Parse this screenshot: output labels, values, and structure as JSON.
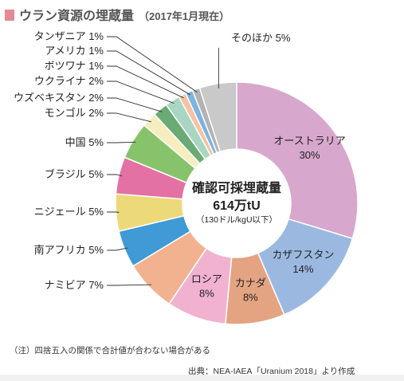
{
  "header": {
    "title": "ウラン資源の埋蔵量",
    "subtitle": "（2017年1月現在）",
    "accent_color": "#e48a96"
  },
  "chart_data": {
    "type": "pie",
    "style": "donut",
    "center_label": {
      "line1": "確認可採埋蔵量",
      "line2": "614万tU",
      "line3": "（130ドル/kgU以下）"
    },
    "start": "12 o'clock, clockwise",
    "slices": [
      {
        "label": "オーストラリア",
        "value": 30,
        "value_text": "30%",
        "color": "#d7a7cd"
      },
      {
        "label": "カザフスタン",
        "value": 14,
        "value_text": "14%",
        "color": "#9bb9e0"
      },
      {
        "label": "カナダ",
        "value": 8,
        "value_text": "8%",
        "color": "#e4a482"
      },
      {
        "label": "ロシア",
        "value": 8,
        "value_text": "8%",
        "color": "#f0b2cf"
      },
      {
        "label": "ナミビア",
        "value": 7,
        "value_text": "7%",
        "color": "#f3b28f"
      },
      {
        "label": "南アフリカ",
        "value": 5,
        "value_text": "5%",
        "color": "#3f9ad6"
      },
      {
        "label": "ニジェール",
        "value": 5,
        "value_text": "5%",
        "color": "#ecd97a"
      },
      {
        "label": "ブラジル",
        "value": 5,
        "value_text": "5%",
        "color": "#e371a4"
      },
      {
        "label": "中国",
        "value": 5,
        "value_text": "5%",
        "color": "#86c36b"
      },
      {
        "label": "モンゴル",
        "value": 2,
        "value_text": "2%",
        "color": "#f6eebe"
      },
      {
        "label": "ウズベキスタン",
        "value": 2,
        "value_text": "2%",
        "color": "#6aaa73"
      },
      {
        "label": "ウクライナ",
        "value": 2,
        "value_text": "2%",
        "color": "#a9d6c3"
      },
      {
        "label": "ボツワナ",
        "value": 1,
        "value_text": "1%",
        "color": "#f6c2a3"
      },
      {
        "label": "アメリカ",
        "value": 1,
        "value_text": "1%",
        "color": "#7fb3e0"
      },
      {
        "label": "タンザニア",
        "value": 1,
        "value_text": "1%",
        "color": "#b3b3b3"
      },
      {
        "label": "そのほか",
        "value": 5,
        "value_text": "5%",
        "color": "#c9c9c9"
      }
    ]
  },
  "note": "（注）四捨五入の関係で合計値が合わない場合がある",
  "source": "出典：NEA-IAEA「Uranium 2018」より作成"
}
